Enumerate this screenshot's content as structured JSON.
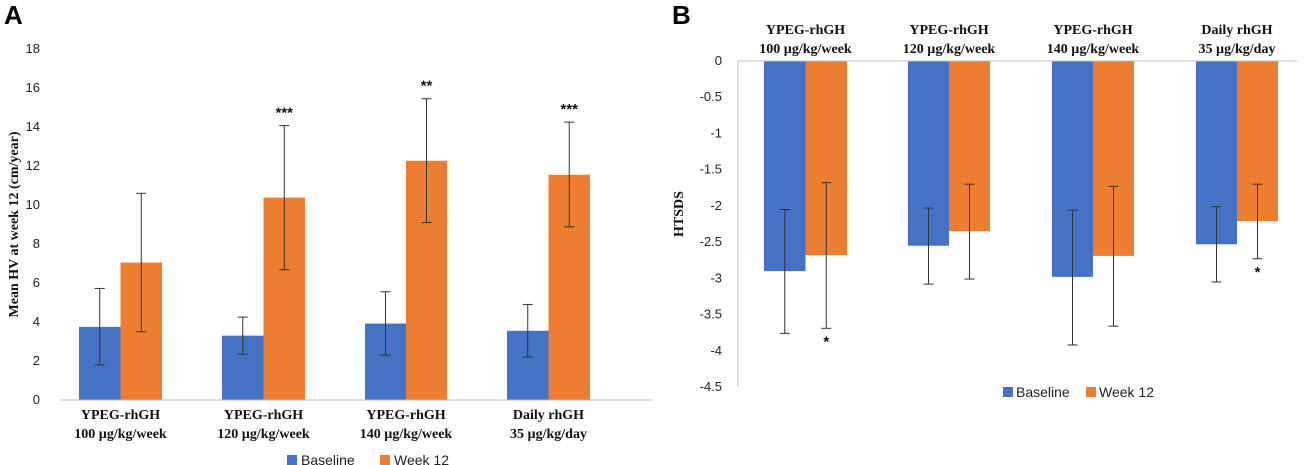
{
  "chart_data": [
    {
      "panel": "A",
      "type": "bar",
      "ylabel": "Mean HV at week 12 (cm/year)",
      "ylim": [
        0,
        18
      ],
      "yticks": [
        "0",
        "2",
        "4",
        "6",
        "8",
        "10",
        "12",
        "14",
        "16",
        "18"
      ],
      "categories": [
        [
          "YPEG-rhGH",
          "100 µg/kg/week"
        ],
        [
          "YPEG-rhGH",
          "120 µg/kg/week"
        ],
        [
          "YPEG-rhGH",
          "140 µg/kg/week"
        ],
        [
          "Daily rhGH",
          "35 µg/kg/day"
        ]
      ],
      "series": [
        {
          "name": "Baseline",
          "color": "#4472C4",
          "values": [
            3.75,
            3.3,
            3.92,
            3.55
          ],
          "err_low": [
            1.8,
            2.35,
            2.3,
            2.2
          ],
          "err_high": [
            5.72,
            4.25,
            5.55,
            4.9
          ]
        },
        {
          "name": "Week 12",
          "color": "#ED7D31",
          "values": [
            7.05,
            10.38,
            12.27,
            11.55
          ],
          "err_low": [
            3.5,
            6.68,
            9.1,
            8.88
          ],
          "err_high": [
            10.6,
            14.07,
            15.45,
            14.25
          ]
        }
      ],
      "annotations": [
        {
          "series": 1,
          "category": 1,
          "text": "***"
        },
        {
          "series": 1,
          "category": 2,
          "text": "**"
        },
        {
          "series": 1,
          "category": 3,
          "text": "***"
        }
      ],
      "legend": [
        "Baseline",
        "Week 12"
      ]
    },
    {
      "panel": "B",
      "type": "bar",
      "ylabel": "HTSDS",
      "ylim": [
        -4.5,
        0
      ],
      "yticks": [
        "0",
        "-0.5",
        "-1",
        "-1.5",
        "-2",
        "-2.5",
        "-3",
        "-3.5",
        "-4",
        "-4.5"
      ],
      "categories": [
        [
          "YPEG-rhGH",
          "100 µg/kg/week"
        ],
        [
          "YPEG-rhGH",
          "120 µg/kg/week"
        ],
        [
          "YPEG-rhGH",
          "140 µg/kg/week"
        ],
        [
          "Daily rhGH",
          "35 µg/kg/day"
        ]
      ],
      "series": [
        {
          "name": "Baseline",
          "color": "#4472C4",
          "values": [
            -2.9,
            -2.55,
            -2.98,
            -2.53
          ],
          "err_low": [
            -3.76,
            -3.08,
            -3.92,
            -3.05
          ],
          "err_high": [
            -2.05,
            -2.03,
            -2.06,
            -2.01
          ]
        },
        {
          "name": "Week 12",
          "color": "#ED7D31",
          "values": [
            -2.68,
            -2.35,
            -2.69,
            -2.21
          ],
          "err_low": [
            -3.69,
            -3.01,
            -3.66,
            -2.73
          ],
          "err_high": [
            -1.68,
            -1.7,
            -1.73,
            -1.7
          ]
        }
      ],
      "annotations": [
        {
          "series": 1,
          "category": 0,
          "text": "*"
        },
        {
          "series": 1,
          "category": 3,
          "text": "*"
        }
      ],
      "legend": [
        "Baseline",
        "Week 12"
      ]
    }
  ]
}
